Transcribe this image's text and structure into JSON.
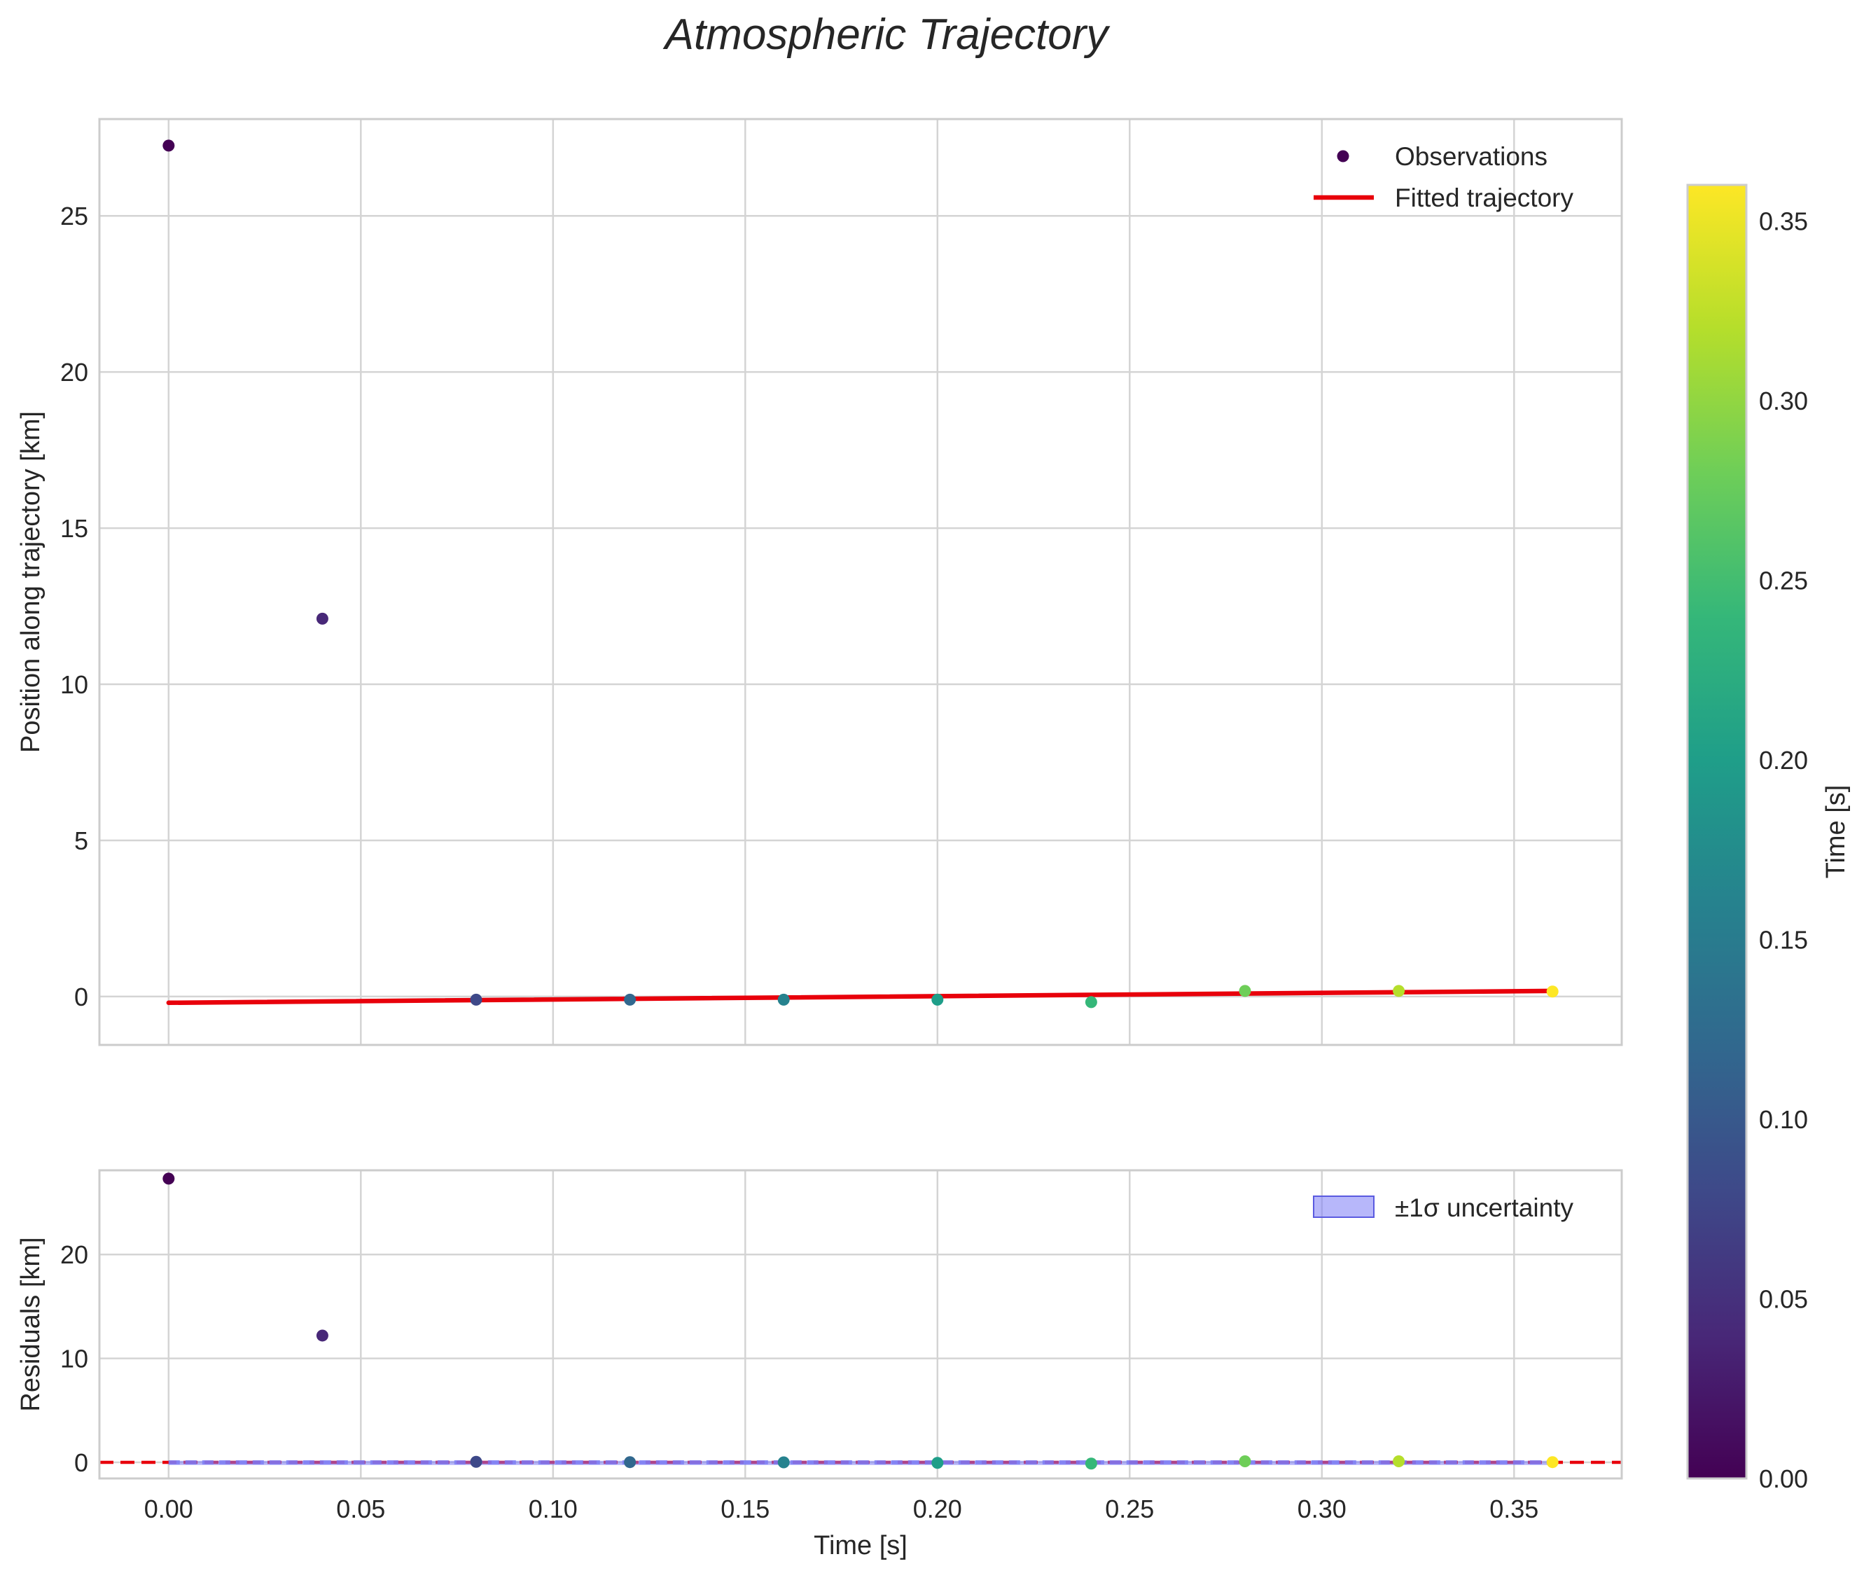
{
  "chart_data": {
    "type": "scatter",
    "title": "Atmospheric Trajectory",
    "colormap": [
      "#440154",
      "#482878",
      "#3e4989",
      "#31688e",
      "#26828e",
      "#1f9e89",
      "#35b779",
      "#6ece58",
      "#b5de2b",
      "#fde725"
    ],
    "fit_color": "#e8000b",
    "band_color": "#7b7bf5",
    "panels": [
      {
        "id": "main",
        "ylabel": "Position along trajectory [km]",
        "xlim": [
          -0.018,
          0.378
        ],
        "ylim": [
          -1.55,
          28.1
        ],
        "yticks": [
          0,
          5,
          10,
          15,
          20,
          25
        ],
        "xticks": [
          0.0,
          0.05,
          0.1,
          0.15,
          0.2,
          0.25,
          0.3,
          0.35
        ],
        "series": [
          {
            "name": "Observations",
            "type": "scatter",
            "x": [
              0.0,
              0.04,
              0.08,
              0.12,
              0.16,
              0.2,
              0.24,
              0.28,
              0.32,
              0.36
            ],
            "y": [
              27.25,
              12.1,
              -0.1,
              -0.1,
              -0.1,
              -0.1,
              -0.18,
              0.18,
              0.18,
              0.16
            ]
          },
          {
            "name": "Fitted trajectory",
            "type": "line",
            "x": [
              0.0,
              0.36
            ],
            "y": [
              -0.2,
              0.18
            ]
          }
        ],
        "legend": [
          "Observations",
          "Fitted trajectory"
        ]
      },
      {
        "id": "residuals",
        "ylabel": "Residuals [km]",
        "xlabel": "Time [s]",
        "xlim": [
          -0.018,
          0.378
        ],
        "ylim": [
          -1.55,
          28.1
        ],
        "yticks": [
          0,
          10,
          20
        ],
        "xticks": [
          0.0,
          0.05,
          0.1,
          0.15,
          0.2,
          0.25,
          0.3,
          0.35
        ],
        "xticklabels": [
          "0.00",
          "0.05",
          "0.10",
          "0.15",
          "0.20",
          "0.25",
          "0.30",
          "0.35"
        ],
        "series": [
          {
            "name": "Residuals",
            "type": "scatter",
            "x": [
              0.0,
              0.04,
              0.08,
              0.12,
              0.16,
              0.2,
              0.24,
              0.28,
              0.32,
              0.36
            ],
            "y": [
              27.3,
              12.2,
              0.05,
              0.02,
              0.0,
              -0.05,
              -0.12,
              0.1,
              0.1,
              0.02
            ]
          },
          {
            "name": "zero line",
            "type": "line",
            "y": 0
          },
          {
            "name": "±1σ uncertainty",
            "type": "band",
            "x": [
              0.0,
              0.36
            ],
            "y_low": -0.15,
            "y_high": 0.15
          }
        ],
        "legend": [
          "±1σ uncertainty"
        ]
      }
    ],
    "colorbar": {
      "label": "Time [s]",
      "range": [
        0.0,
        0.36
      ],
      "ticks": [
        0.0,
        0.05,
        0.1,
        0.15,
        0.2,
        0.25,
        0.3,
        0.35
      ],
      "ticklabels": [
        "0.00",
        "0.05",
        "0.10",
        "0.15",
        "0.20",
        "0.25",
        "0.30",
        "0.35"
      ]
    }
  }
}
